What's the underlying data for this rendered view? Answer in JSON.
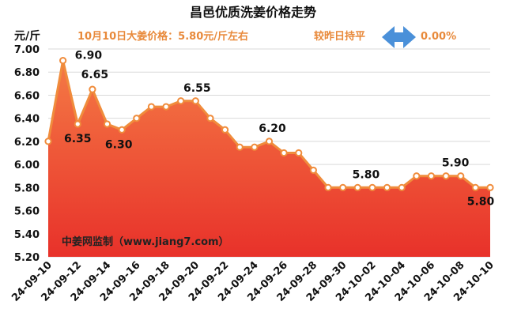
{
  "header": {
    "title": "昌邑优质洗姜价格走势",
    "unit": "元/斤",
    "price_note": "10月10日大姜价格：5.80元/斤左右",
    "change_label": "较昨日持平",
    "change_value": "0.00%",
    "change_icon": "left-right-arrow-icon"
  },
  "watermark": "中姜网监制（www.jiang7.com）",
  "colors": {
    "line": "#f08c3c",
    "area_top": "#f47a45",
    "area_bottom": "#e8312a",
    "accent_text": "#e8893a",
    "arrow": "#4a90d9"
  },
  "chart_data": {
    "type": "area",
    "title": "昌邑优质洗姜价格走势",
    "ylabel": "元/斤",
    "xlabel": "",
    "ylim": [
      5.2,
      7.0
    ],
    "yticks": [
      "7.00",
      "6.80",
      "6.60",
      "6.40",
      "6.20",
      "6.00",
      "5.80",
      "5.60",
      "5.40",
      "5.20"
    ],
    "xticks": [
      "24-09-10",
      "24-09-12",
      "24-09-14",
      "24-09-16",
      "24-09-18",
      "24-09-20",
      "24-09-22",
      "24-09-24",
      "24-09-26",
      "24-09-28",
      "24-09-30",
      "24-10-02",
      "24-10-04",
      "24-10-06",
      "24-10-08",
      "24-10-10"
    ],
    "x": [
      "24-09-10",
      "24-09-11",
      "24-09-12",
      "24-09-13",
      "24-09-14",
      "24-09-15",
      "24-09-16",
      "24-09-17",
      "24-09-18",
      "24-09-19",
      "24-09-20",
      "24-09-21",
      "24-09-22",
      "24-09-23",
      "24-09-24",
      "24-09-25",
      "24-09-26",
      "24-09-27",
      "24-09-28",
      "24-09-29",
      "24-09-30",
      "24-10-01",
      "24-10-02",
      "24-10-03",
      "24-10-04",
      "24-10-05",
      "24-10-06",
      "24-10-07",
      "24-10-08",
      "24-10-09",
      "24-10-10"
    ],
    "values": [
      6.2,
      6.9,
      6.35,
      6.65,
      6.35,
      6.3,
      6.4,
      6.5,
      6.5,
      6.55,
      6.55,
      6.4,
      6.3,
      6.15,
      6.15,
      6.2,
      6.1,
      6.1,
      5.95,
      5.8,
      5.8,
      5.8,
      5.8,
      5.8,
      5.8,
      5.9,
      5.9,
      5.9,
      5.9,
      5.8,
      5.8
    ],
    "data_labels": [
      {
        "index": 1,
        "text": "6.90"
      },
      {
        "index": 2,
        "text": "6.35"
      },
      {
        "index": 3,
        "text": "6.65"
      },
      {
        "index": 5,
        "text": "6.30"
      },
      {
        "index": 10,
        "text": "6.55"
      },
      {
        "index": 15,
        "text": "6.20"
      },
      {
        "index": 22,
        "text": "5.80"
      },
      {
        "index": 27,
        "text": "5.90"
      },
      {
        "index": 30,
        "text": "5.80"
      }
    ],
    "grid": true,
    "legend": "none"
  }
}
